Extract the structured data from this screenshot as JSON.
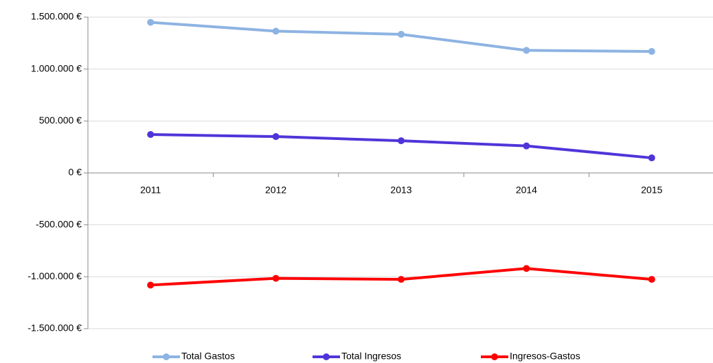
{
  "chart_data": {
    "type": "line",
    "categories": [
      "2011",
      "2012",
      "2013",
      "2014",
      "2015"
    ],
    "series": [
      {
        "name": "Total Gastos",
        "color": "#8db3e2",
        "values": [
          1450000,
          1365000,
          1335000,
          1180000,
          1170000
        ]
      },
      {
        "name": "Total Ingresos",
        "color": "#4f35d9",
        "values": [
          370000,
          350000,
          310000,
          260000,
          145000
        ]
      },
      {
        "name": "Ingresos-Gastos",
        "color": "#ff0000",
        "values": [
          -1080000,
          -1015000,
          -1025000,
          -920000,
          -1025000
        ]
      }
    ],
    "ylim": [
      -1500000,
      1500000
    ],
    "yticks": [
      {
        "value": -1500000,
        "label": "-1.500.000 €"
      },
      {
        "value": -1000000,
        "label": "-1.000.000 €"
      },
      {
        "value": -500000,
        "label": "-500.000 €"
      },
      {
        "value": 0,
        "label": "0 €"
      },
      {
        "value": 500000,
        "label": "500.000 €"
      },
      {
        "value": 1000000,
        "label": "1.000.000 €"
      },
      {
        "value": 1500000,
        "label": "1.500.000 €"
      }
    ],
    "grid": true,
    "legend": "bottom"
  }
}
